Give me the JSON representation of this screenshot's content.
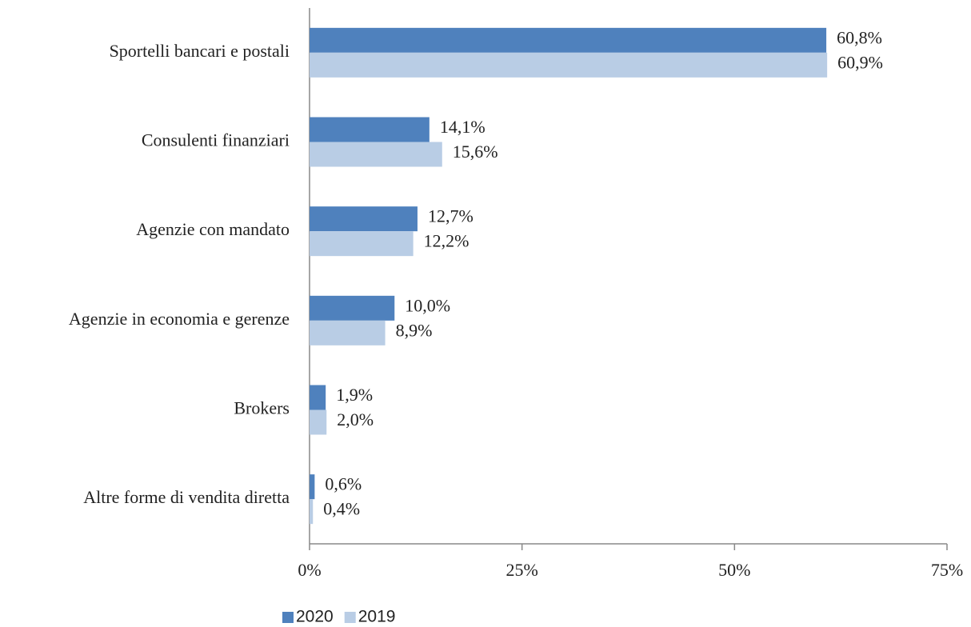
{
  "chart_data": {
    "type": "barh",
    "categories": [
      "Sportelli bancari e postali",
      "Consulenti finanziari",
      "Agenzie con mandato",
      "Agenzie in economia e gerenze",
      "Brokers",
      "Altre forme di vendita diretta"
    ],
    "series": [
      {
        "name": "2020",
        "color": "#4f81bd",
        "values": [
          60.8,
          14.1,
          12.7,
          10.0,
          1.9,
          0.6
        ],
        "value_labels": [
          "60,8%",
          "14,1%",
          "12,7%",
          "10,0%",
          "1,9%",
          "0,6%"
        ]
      },
      {
        "name": "2019",
        "color": "#b9cde5",
        "values": [
          60.9,
          15.6,
          12.2,
          8.9,
          2.0,
          0.4
        ],
        "value_labels": [
          "60,9%",
          "15,6%",
          "12,2%",
          "8,9%",
          "2,0%",
          "0,4%"
        ]
      }
    ],
    "xlim": [
      0,
      75
    ],
    "xticks": [
      {
        "value": 0,
        "label": "0%"
      },
      {
        "value": 25,
        "label": "25%"
      },
      {
        "value": 50,
        "label": "50%"
      },
      {
        "value": 75,
        "label": "75%"
      }
    ],
    "grid": false,
    "legend": "bottom"
  }
}
